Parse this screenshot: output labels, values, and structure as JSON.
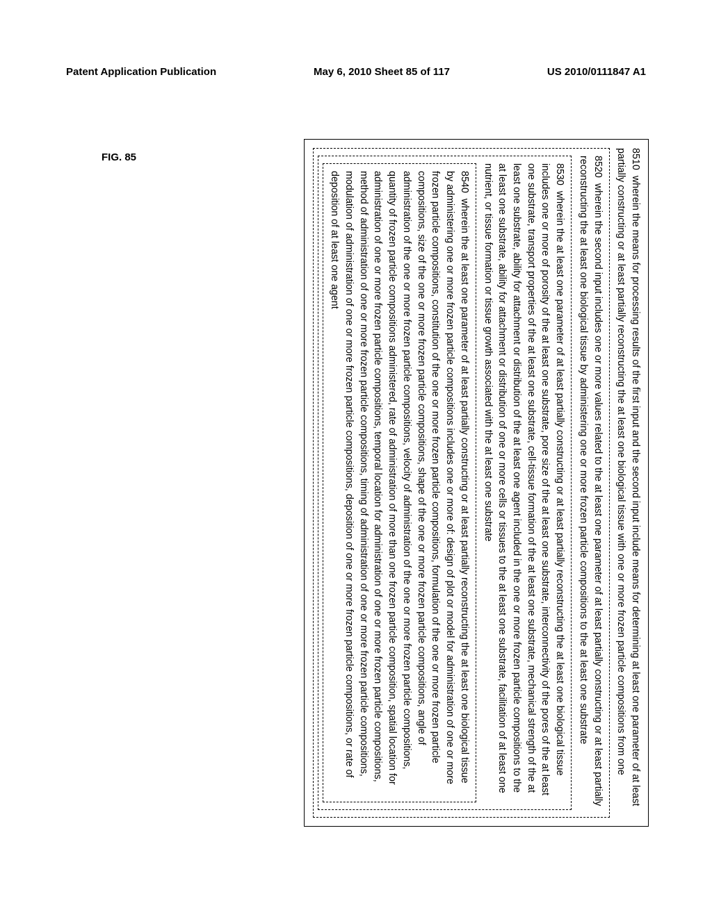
{
  "header": {
    "left": "Patent Application Publication",
    "center": "May 6, 2010  Sheet 85 of 117",
    "right": "US 2010/0111847 A1"
  },
  "figure_label": "FIG. 85",
  "box8510": {
    "ref": "8510",
    "text": "wherein the means for processing results of the first input and the second input include means for determining at least one parameter of at least partially constructing or at least partially reconstructing the at least one biological tissue with one or more frozen particle compositions from one"
  },
  "box8520": {
    "ref": "8520",
    "text": "wherein the second input includes one or more values related to the at least one parameter of at least partially constructing or at least partially reconstructing the at least one biological tissue by administering one or more frozen particle compositions to the at least one substrate"
  },
  "box8530": {
    "ref": "8530",
    "text": "wherein the at least one parameter of at least partially constructing or at least partially reconstructing the at least one biological tissue includes one or more of porosity of the at least one substrate, pore size of the at least one substrate, interconnectivity of the pores of the at least one substrate, transport properties of the at least one substrate, cell-tissue formation of the at least one substrate, mechanical strength of the at least one substrate, ability for attachment or distribution of the at least one agent included in the one or more frozen particle compositions to the at least one substrate, ability for attachment or distribution of one or more cells or tissues to the at least one substrate, facilitation of at least one nutrient, or tissue formation or tissue growth associated with the at least one substrate"
  },
  "box8540": {
    "ref": "8540",
    "text": "wherein the at least one parameter of at least partially constructing or at least partially reconstructing the at least one biological tissue by administering one or more frozen particle compositions includes one or more of:  design of plot or model for administration of one or more frozen particle compositions, constitution of the one or more frozen particle compositions, formulation of the one or more frozen particle compositions, size of the one or more frozen particle compositions, shape of the one or more frozen particle compositions, angle of administration of the one or more frozen particle compositions, velocity of administration of the one or more frozen particle compositions, quantity of frozen particle compositions administered, rate of administration of more than one frozen particle composition, spatial location for administration of one or more frozen particle compositions, temporal location for administration of one or more frozen particle compositions, method of administration of one or more frozen particle compositions, timing of administration of one or more frozen particle compositions, modulation of administration of one or more frozen particle compositions, deposition of one or more frozen particle compositions, or rate of deposition of at least one agent"
  }
}
